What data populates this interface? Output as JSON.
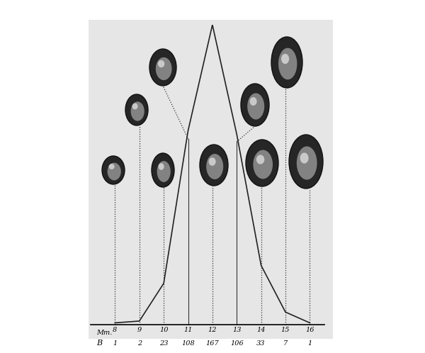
{
  "chart_data": {
    "type": "line",
    "x_label": "Mm.",
    "x": [
      8,
      9,
      10,
      11,
      12,
      13,
      14,
      15,
      16
    ],
    "xlim": [
      7,
      16.6
    ],
    "xticks": [
      8,
      9,
      10,
      11,
      12,
      13,
      14,
      15,
      16
    ],
    "ylim": [
      0,
      167
    ],
    "series": [
      {
        "name": "B",
        "color": "#222222",
        "values": [
          1,
          2,
          23,
          108,
          167,
          106,
          33,
          7,
          1
        ]
      }
    ],
    "data_labels": true,
    "tick_labels": "x"
  }
}
